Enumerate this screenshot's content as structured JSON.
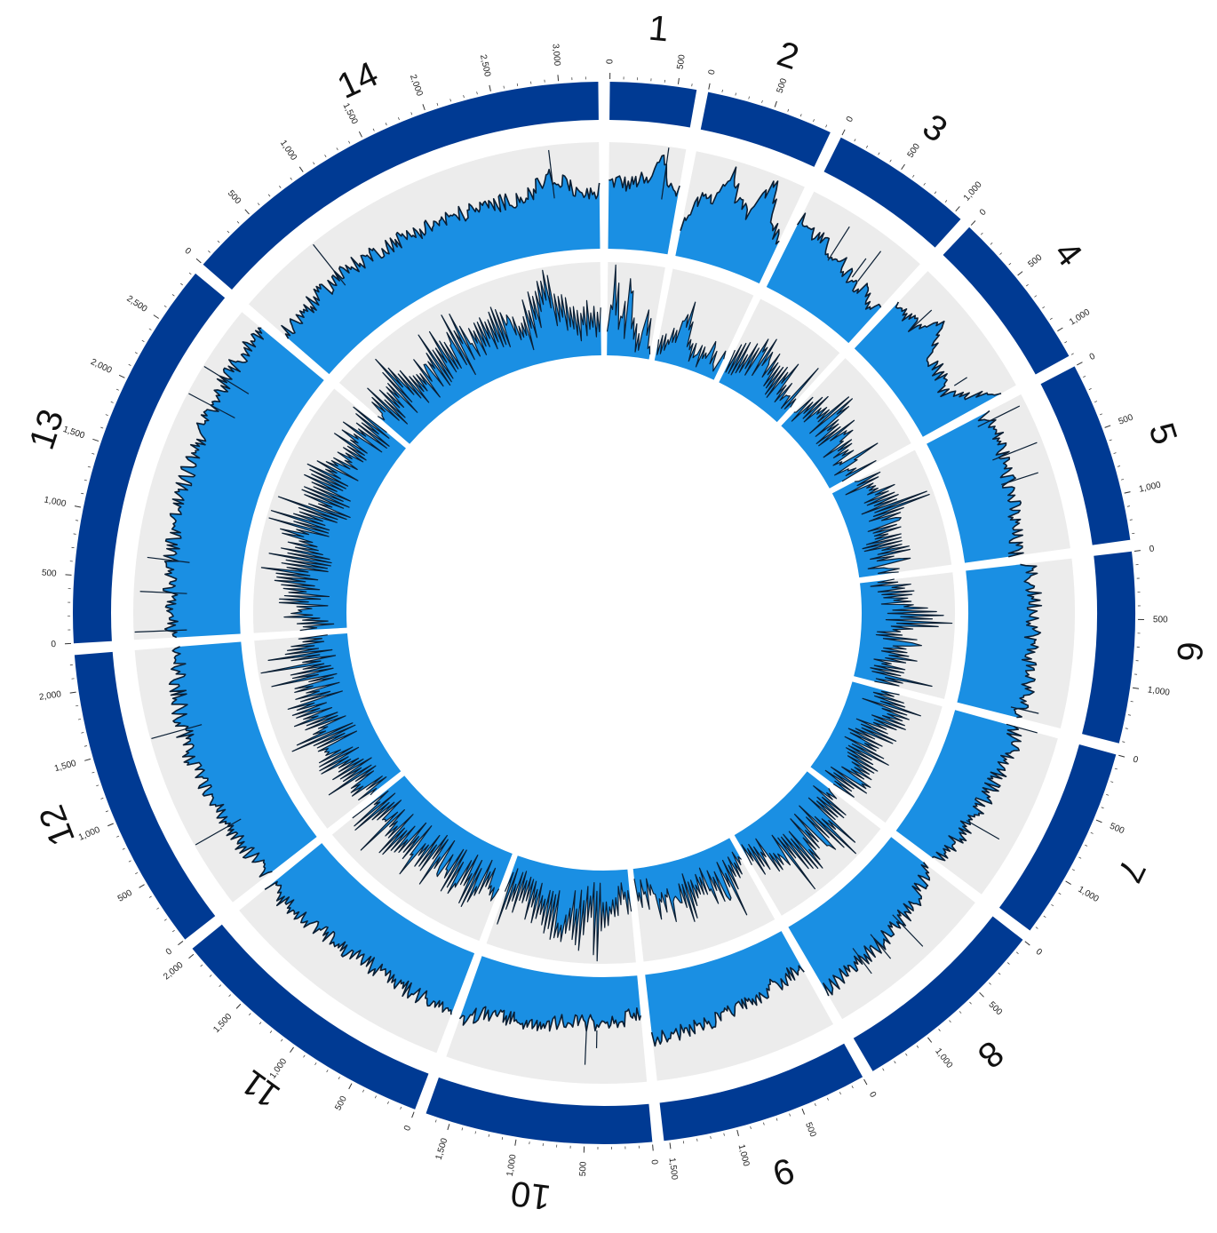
{
  "chart_data": {
    "type": "circos",
    "title": "",
    "colors": {
      "ideogram": "#003a93",
      "track_background": "#ececec",
      "track_fill": "#1a8fe3",
      "track_line": "#0a1e33",
      "tick": "#333333",
      "label": "#111111"
    },
    "chromosomes": [
      {
        "name": "1",
        "length": 640,
        "ticks": [
          "0",
          "500"
        ]
      },
      {
        "name": "2",
        "length": 947,
        "ticks": [
          "0",
          "500"
        ]
      },
      {
        "name": "3",
        "length": 1067,
        "ticks": [
          "0",
          "500",
          "1,000"
        ]
      },
      {
        "name": "4",
        "length": 1200,
        "ticks": [
          "0",
          "500",
          "1,000"
        ]
      },
      {
        "name": "5",
        "length": 1344,
        "ticks": [
          "0",
          "500",
          "1,000"
        ]
      },
      {
        "name": "6",
        "length": 1418,
        "ticks": [
          "0",
          "500",
          "1,000"
        ]
      },
      {
        "name": "7",
        "length": 1445,
        "ticks": [
          "0",
          "500",
          "1,000"
        ]
      },
      {
        "name": "8",
        "length": 1472,
        "ticks": [
          "0",
          "500",
          "1,000"
        ]
      },
      {
        "name": "9",
        "length": 1541,
        "ticks": [
          "0",
          "500",
          "1,000",
          "1,500"
        ]
      },
      {
        "name": "10",
        "length": 1687,
        "ticks": [
          "0",
          "500",
          "1,000",
          "1,500"
        ]
      },
      {
        "name": "11",
        "length": 2038,
        "ticks": [
          "0",
          "500",
          "1,000",
          "1,500",
          "2,000"
        ]
      },
      {
        "name": "12",
        "length": 2271,
        "ticks": [
          "0",
          "500",
          "1,000",
          "1,500",
          "2,000"
        ]
      },
      {
        "name": "13",
        "length": 2925,
        "ticks": [
          "0",
          "500",
          "1,000",
          "1,500",
          "2,000",
          "2,500"
        ]
      },
      {
        "name": "14",
        "length": 3291,
        "ticks": [
          "0",
          "500",
          "1,000",
          "1,500",
          "2,000",
          "2,500",
          "3,000"
        ]
      }
    ],
    "outer_track": {
      "type": "histogram",
      "series": [
        {
          "chromosome": "1",
          "values": [
            0.62,
            0.64,
            0.6,
            0.66,
            0.63,
            0.95,
            0.61,
            0.58
          ]
        },
        {
          "chromosome": "2",
          "values": [
            0.3,
            0.55,
            0.62,
            0.88,
            0.6,
            0.57,
            0.93,
            0.55,
            0.45
          ]
        },
        {
          "chromosome": "3",
          "values": [
            0.72,
            0.66,
            0.62,
            0.58,
            0.55,
            0.5,
            0.47,
            0.43,
            0.4
          ]
        },
        {
          "chromosome": "4",
          "values": [
            0.62,
            0.58,
            0.55,
            0.8,
            0.52,
            0.47,
            0.45,
            0.4,
            0.55,
            0.85
          ]
        },
        {
          "chromosome": "5",
          "values": [
            0.6,
            0.62,
            0.63,
            0.6,
            0.58,
            0.57,
            0.55,
            0.52,
            0.5,
            0.48
          ]
        },
        {
          "chromosome": "6",
          "values": [
            0.58,
            0.6,
            0.62,
            0.63,
            0.62,
            0.6,
            0.61,
            0.63,
            0.6,
            0.58
          ]
        },
        {
          "chromosome": "7",
          "values": [
            0.6,
            0.62,
            0.6,
            0.58,
            0.57,
            0.55,
            0.54,
            0.52,
            0.5,
            0.48
          ]
        },
        {
          "chromosome": "8",
          "values": [
            0.45,
            0.5,
            0.55,
            0.58,
            0.6,
            0.62,
            0.63,
            0.64,
            0.66,
            0.7
          ]
        },
        {
          "chromosome": "9",
          "values": [
            0.36,
            0.4,
            0.44,
            0.47,
            0.5,
            0.53,
            0.55,
            0.57,
            0.58,
            0.6
          ]
        },
        {
          "chromosome": "10",
          "values": [
            0.35,
            0.4,
            0.42,
            0.44,
            0.45,
            0.47,
            0.48,
            0.5,
            0.52,
            0.62
          ]
        },
        {
          "chromosome": "11",
          "values": [
            0.6,
            0.58,
            0.57,
            0.56,
            0.55,
            0.55,
            0.56,
            0.57,
            0.58,
            0.6,
            0.62,
            0.63
          ]
        },
        {
          "chromosome": "12",
          "values": [
            0.58,
            0.6,
            0.62,
            0.63,
            0.65,
            0.66,
            0.7,
            0.68,
            0.67,
            0.65,
            0.62,
            0.6
          ]
        },
        {
          "chromosome": "13",
          "values": [
            0.65,
            0.66,
            0.67,
            0.68,
            0.69,
            0.7,
            0.7,
            0.71,
            0.72,
            0.73,
            0.74,
            0.75,
            0.75,
            0.76
          ]
        },
        {
          "chromosome": "14",
          "values": [
            0.55,
            0.57,
            0.58,
            0.6,
            0.6,
            0.59,
            0.58,
            0.57,
            0.56,
            0.56,
            0.55,
            0.55,
            0.56,
            0.72,
            0.55,
            0.54
          ]
        }
      ]
    },
    "inner_track": {
      "type": "histogram",
      "series": [
        {
          "chromosome": "1",
          "values": [
            0.25,
            0.9,
            0.45,
            0.92,
            0.3,
            0.2,
            0.55,
            0.15
          ]
        },
        {
          "chromosome": "2",
          "values": [
            0.2,
            0.25,
            0.45,
            0.62,
            0.3,
            0.2,
            0.35,
            0.25,
            0.18
          ]
        },
        {
          "chromosome": "3",
          "values": [
            0.35,
            0.45,
            0.55,
            0.6,
            0.5,
            0.4,
            0.48,
            0.35,
            0.3
          ]
        },
        {
          "chromosome": "4",
          "values": [
            0.3,
            0.45,
            0.55,
            0.7,
            0.5,
            0.55,
            0.45,
            0.35,
            0.4,
            0.3
          ]
        },
        {
          "chromosome": "5",
          "values": [
            0.35,
            0.55,
            0.6,
            0.65,
            0.55,
            0.5,
            0.45,
            0.55,
            0.4,
            0.35
          ]
        },
        {
          "chromosome": "6",
          "values": [
            0.4,
            0.55,
            0.6,
            0.9,
            0.55,
            0.5,
            0.6,
            0.45,
            0.55,
            0.4
          ]
        },
        {
          "chromosome": "7",
          "values": [
            0.45,
            0.55,
            0.7,
            0.6,
            0.5,
            0.55,
            0.45,
            0.6,
            0.65,
            0.5
          ]
        },
        {
          "chromosome": "8",
          "values": [
            0.4,
            0.55,
            0.65,
            0.7,
            0.6,
            0.85,
            0.55,
            0.5,
            0.45,
            0.4
          ]
        },
        {
          "chromosome": "9",
          "values": [
            0.35,
            0.4,
            0.5,
            0.55,
            0.45,
            0.6,
            0.5,
            0.4,
            0.35,
            0.3
          ]
        },
        {
          "chromosome": "10",
          "values": [
            0.4,
            0.45,
            0.55,
            0.6,
            0.65,
            0.85,
            0.6,
            0.55,
            0.5,
            0.45
          ]
        },
        {
          "chromosome": "11",
          "values": [
            0.45,
            0.55,
            0.6,
            0.65,
            0.55,
            0.5,
            0.6,
            0.65,
            0.7,
            0.55,
            0.5,
            0.45
          ]
        },
        {
          "chromosome": "12",
          "values": [
            0.5,
            0.55,
            0.6,
            0.65,
            0.7,
            0.6,
            0.75,
            0.65,
            0.55,
            0.6,
            0.65,
            0.55
          ]
        },
        {
          "chromosome": "13",
          "values": [
            0.55,
            0.6,
            0.7,
            0.75,
            0.65,
            0.7,
            0.8,
            0.6,
            0.65,
            0.7,
            0.55,
            0.6,
            0.65,
            0.55
          ]
        },
        {
          "chromosome": "14",
          "values": [
            0.5,
            0.55,
            0.65,
            0.6,
            0.55,
            0.7,
            0.65,
            0.55,
            0.6,
            0.65,
            0.55,
            0.6,
            0.9,
            0.55,
            0.5,
            0.45
          ]
        }
      ]
    }
  }
}
